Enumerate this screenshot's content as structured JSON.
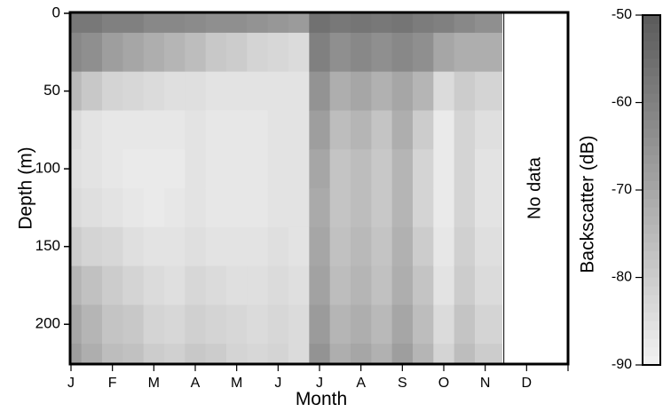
{
  "chart_data": {
    "type": "heatmap",
    "title": "",
    "xlabel": "Month",
    "ylabel": "Depth (m)",
    "x_tick_labels": [
      "J",
      "F",
      "M",
      "A",
      "M",
      "J",
      "J",
      "A",
      "S",
      "O",
      "N",
      "D"
    ],
    "y_ticks": [
      0,
      50,
      100,
      150,
      200
    ],
    "ylim": [
      0,
      225
    ],
    "y_inverted": true,
    "no_data_label": "No data",
    "no_data_from_month_index": 10.45,
    "colorbar": {
      "label": "Backscatter (dB)",
      "ticks": [
        -50,
        -60,
        -70,
        -80,
        -90
      ],
      "range": [
        -90,
        -50
      ],
      "colors": {
        "high": "#5a5a5a",
        "low": "#f2f2f2"
      }
    },
    "data_columns": {
      "months": [
        0.0,
        0.5,
        1.0,
        1.5,
        2.0,
        2.5,
        3.0,
        3.5,
        4.0,
        4.5,
        5.0,
        5.5,
        6.0,
        6.5,
        7.0,
        7.5,
        8.0,
        8.5,
        9.0,
        9.5,
        10.0
      ],
      "depths": [
        0,
        25,
        50,
        75,
        100,
        125,
        150,
        175,
        200,
        225
      ],
      "backscatter_db": [
        [
          -58,
          -62,
          -75,
          -84,
          -85,
          -84,
          -80,
          -74,
          -70,
          -68
        ],
        [
          -58,
          -64,
          -79,
          -86,
          -86,
          -85,
          -82,
          -77,
          -74,
          -72
        ],
        [
          -60,
          -68,
          -82,
          -87,
          -87,
          -86,
          -83,
          -80,
          -78,
          -76
        ],
        [
          -60,
          -70,
          -83,
          -87,
          -88,
          -87,
          -85,
          -82,
          -79,
          -77
        ],
        [
          -62,
          -72,
          -84,
          -87,
          -88,
          -88,
          -86,
          -84,
          -82,
          -80
        ],
        [
          -62,
          -74,
          -85,
          -87,
          -88,
          -87,
          -86,
          -85,
          -83,
          -81
        ],
        [
          -63,
          -76,
          -85,
          -86,
          -86,
          -86,
          -85,
          -83,
          -81,
          -79
        ],
        [
          -64,
          -79,
          -86,
          -87,
          -87,
          -87,
          -86,
          -84,
          -82,
          -80
        ],
        [
          -64,
          -80,
          -86,
          -87,
          -87,
          -87,
          -86,
          -85,
          -83,
          -82
        ],
        [
          -65,
          -82,
          -86,
          -87,
          -87,
          -87,
          -86,
          -85,
          -84,
          -83
        ],
        [
          -66,
          -83,
          -86,
          -86,
          -86,
          -86,
          -85,
          -84,
          -83,
          -82
        ],
        [
          -67,
          -84,
          -86,
          -86,
          -86,
          -86,
          -86,
          -85,
          -84,
          -84
        ],
        [
          -56,
          -60,
          -65,
          -68,
          -70,
          -71,
          -70,
          -69,
          -67,
          -65
        ],
        [
          -58,
          -64,
          -72,
          -76,
          -78,
          -78,
          -77,
          -76,
          -74,
          -72
        ],
        [
          -57,
          -62,
          -70,
          -74,
          -76,
          -76,
          -75,
          -74,
          -72,
          -70
        ],
        [
          -58,
          -64,
          -73,
          -78,
          -79,
          -79,
          -78,
          -77,
          -75,
          -73
        ],
        [
          -57,
          -62,
          -70,
          -72,
          -74,
          -74,
          -73,
          -72,
          -70,
          -68
        ],
        [
          -59,
          -64,
          -74,
          -80,
          -82,
          -82,
          -80,
          -78,
          -76,
          -74
        ],
        [
          -60,
          -70,
          -84,
          -88,
          -88,
          -88,
          -87,
          -86,
          -84,
          -82
        ],
        [
          -62,
          -72,
          -80,
          -82,
          -82,
          -82,
          -81,
          -80,
          -78,
          -76
        ],
        [
          -64,
          -72,
          -82,
          -85,
          -86,
          -86,
          -85,
          -84,
          -82,
          -80
        ]
      ]
    }
  }
}
